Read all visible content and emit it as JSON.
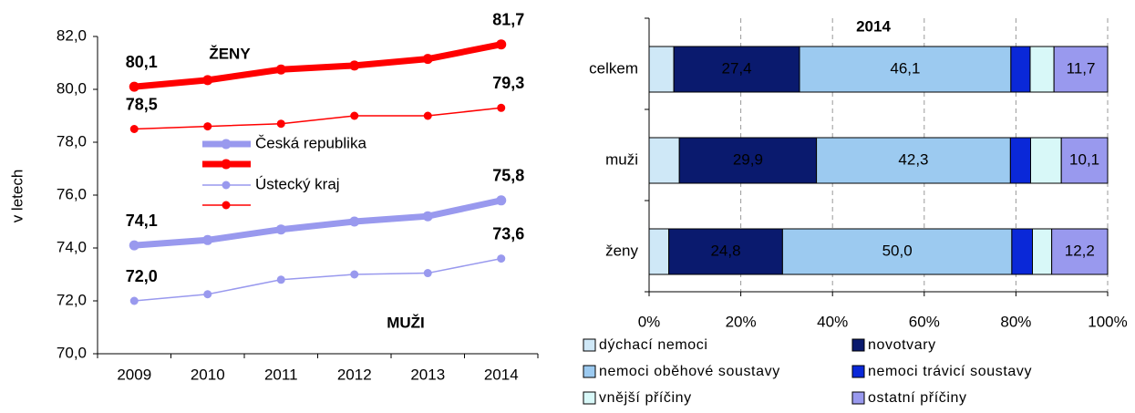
{
  "chart_data": [
    {
      "type": "line",
      "y_label": "v letech",
      "categories": [
        "2009",
        "2010",
        "2011",
        "2012",
        "2013",
        "2014"
      ],
      "ylim": [
        70,
        82
      ],
      "yticks": [
        {
          "value": 70,
          "label": "70,0"
        },
        {
          "value": 72,
          "label": "72,0"
        },
        {
          "value": 74,
          "label": "74,0"
        },
        {
          "value": 76,
          "label": "76,0"
        },
        {
          "value": 78,
          "label": "78,0"
        },
        {
          "value": 80,
          "label": "80,0"
        },
        {
          "value": 82,
          "label": "82,0"
        }
      ],
      "legend": [
        "Česká republika",
        "Ústecký kraj"
      ],
      "annotations": [
        {
          "text": "ŽENY",
          "color": "#ff0000"
        },
        {
          "text": "MUŽI",
          "color": "#9999ee"
        }
      ],
      "series": [
        {
          "color": "#ff0000",
          "width": 7,
          "values": [
            80.1,
            80.35,
            80.75,
            80.9,
            81.15,
            81.7
          ],
          "value_labels": [
            "80,1",
            null,
            null,
            null,
            null,
            "81,7"
          ]
        },
        {
          "color": "#ff0000",
          "width": 1.5,
          "values": [
            78.5,
            78.6,
            78.7,
            79.0,
            79.0,
            79.3
          ],
          "value_labels": [
            "78,5",
            null,
            null,
            null,
            null,
            "79,3"
          ]
        },
        {
          "color": "#9999ee",
          "width": 7,
          "values": [
            74.1,
            74.3,
            74.7,
            75.0,
            75.2,
            75.8
          ],
          "value_labels": [
            "74,1",
            null,
            null,
            null,
            null,
            "75,8"
          ]
        },
        {
          "color": "#9999ee",
          "width": 1.5,
          "values": [
            72.0,
            72.25,
            72.8,
            73.0,
            73.05,
            73.6
          ],
          "value_labels": [
            "72,0",
            null,
            null,
            null,
            null,
            "73,6"
          ]
        }
      ]
    },
    {
      "type": "stacked_bar_horizontal",
      "title": "2014",
      "categories": [
        "celkem",
        "muži",
        "ženy"
      ],
      "xlim": [
        0,
        100
      ],
      "xticks": [
        {
          "value": 0,
          "label": "0%"
        },
        {
          "value": 20,
          "label": "20%"
        },
        {
          "value": 40,
          "label": "40%"
        },
        {
          "value": 60,
          "label": "60%"
        },
        {
          "value": 80,
          "label": "80%"
        },
        {
          "value": 100,
          "label": "100%"
        }
      ],
      "grid": true,
      "series": [
        {
          "name": "dýchací nemoci",
          "color": "#cfe8f7",
          "values": [
            5.4,
            6.6,
            4.3
          ],
          "value_labels": [
            null,
            null,
            null
          ]
        },
        {
          "name": "novotvary",
          "color": "#0a1a6e",
          "values": [
            27.4,
            29.9,
            24.8
          ],
          "value_labels": [
            "27,4",
            "29,9",
            "24,8"
          ]
        },
        {
          "name": "nemoci oběhové soustavy",
          "color": "#9ccaf0",
          "values": [
            46.1,
            42.3,
            50.0
          ],
          "value_labels": [
            "46,1",
            "42,3",
            "50,0"
          ]
        },
        {
          "name": "nemoci trávicí soustavy",
          "color": "#0a28d8",
          "values": [
            4.2,
            4.4,
            4.5
          ],
          "value_labels": [
            null,
            null,
            null
          ]
        },
        {
          "name": "vnější příčiny",
          "color": "#d8f8f8",
          "values": [
            5.2,
            6.7,
            4.2
          ],
          "value_labels": [
            null,
            null,
            null
          ]
        },
        {
          "name": "ostatní příčiny",
          "color": "#9999ee",
          "values": [
            11.7,
            10.1,
            12.2
          ],
          "value_labels": [
            "11,7",
            "10,1",
            "12,2"
          ]
        }
      ]
    }
  ]
}
